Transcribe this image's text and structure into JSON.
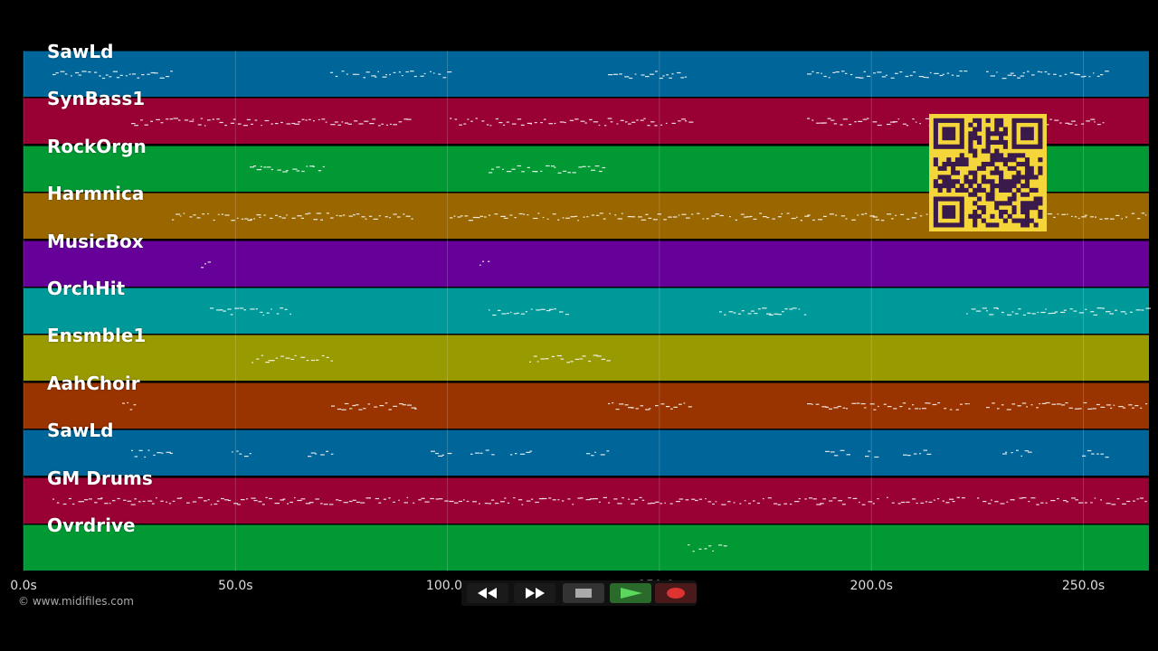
{
  "tracks": [
    {
      "name": "SawLd",
      "color": "#006699"
    },
    {
      "name": "SynBass1",
      "color": "#990033"
    },
    {
      "name": "RockOrgn",
      "color": "#009933"
    },
    {
      "name": "Harmnica",
      "color": "#996600"
    },
    {
      "name": "MusicBox",
      "color": "#660099"
    },
    {
      "name": "OrchHit",
      "color": "#009999"
    },
    {
      "name": "Ensmble1",
      "color": "#999900"
    },
    {
      "name": "AahChoir",
      "color": "#993300"
    },
    {
      "name": "SawLd",
      "color": "#006699"
    },
    {
      "name": "GM Drums",
      "color": "#990033"
    },
    {
      "name": "Ovrdrive",
      "color": "#009933"
    }
  ],
  "time_axis": {
    "ticks": [
      "0.0s",
      "50.0s",
      "100.0s",
      "150.0s",
      "200.0s",
      "250.0s"
    ]
  },
  "copyright": "© www.midifiles.com",
  "transport": {
    "rewind_icon": "rewind-icon",
    "forward_icon": "fast-forward-icon",
    "stop_icon": "stop-icon",
    "play_icon": "play-icon",
    "record_icon": "record-icon",
    "play_color": "#5cd65c",
    "record_color": "#dd3333"
  },
  "qr_code": {
    "color": "#f5d63a",
    "dark": "#3a1a4a"
  }
}
